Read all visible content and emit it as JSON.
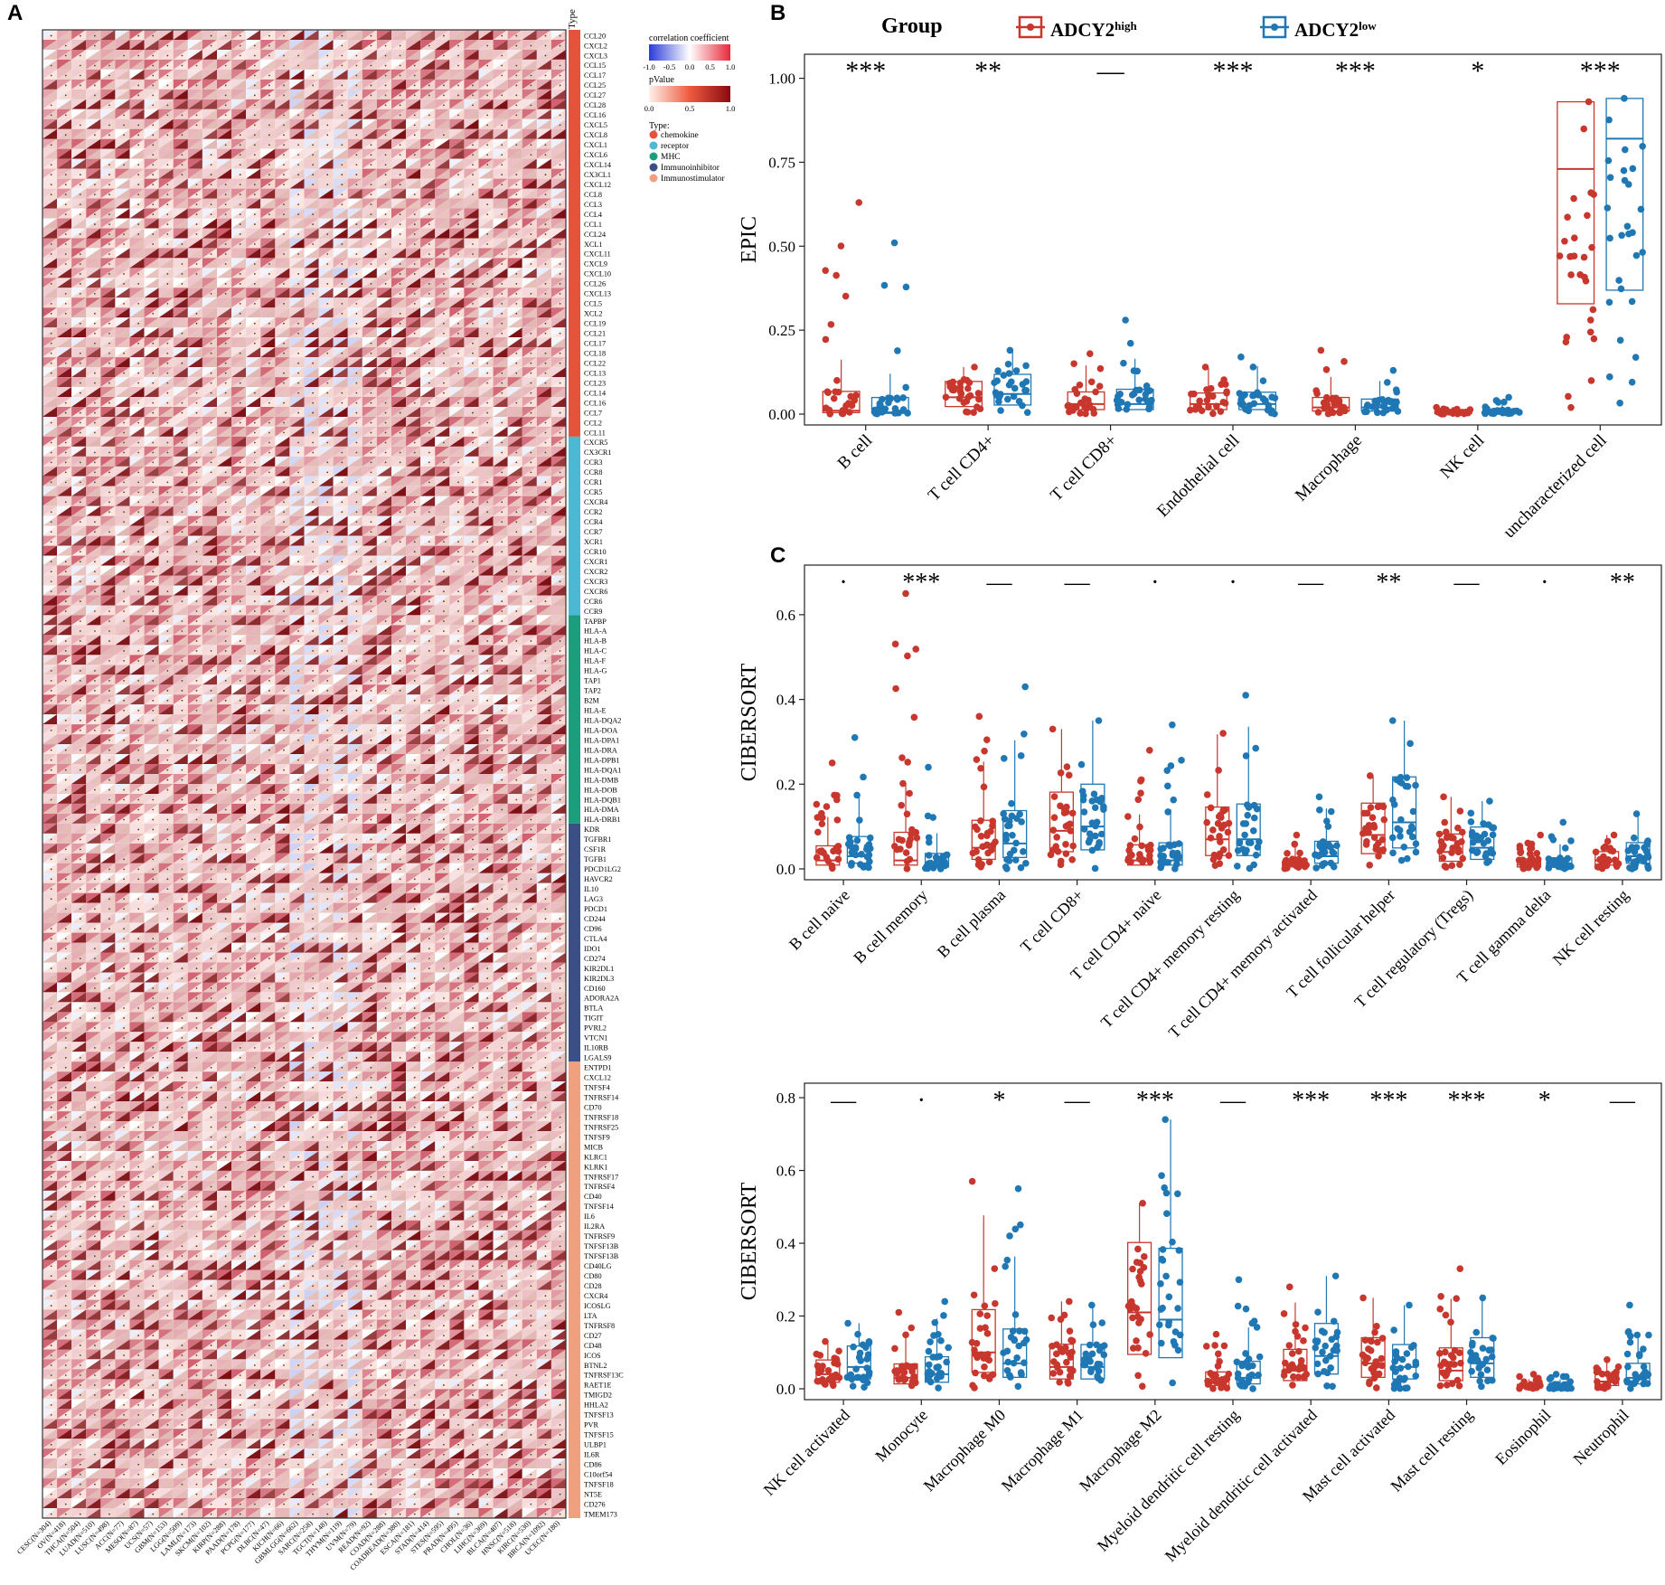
{
  "panels": {
    "a": "A",
    "b": "B",
    "c": "C"
  },
  "heatmap": {
    "type_title": "Type",
    "legend": {
      "corr_title": "correlation coefficient",
      "corr_ticks": [
        "-1.0",
        "-0.5",
        "0.0",
        "0.5",
        "1.0"
      ],
      "p_title": "pValue",
      "p_ticks": [
        "0.0",
        "0.5",
        "1.0"
      ],
      "type_label": "Type:",
      "types": [
        {
          "label": "chemokine",
          "color": "#e5533b"
        },
        {
          "label": "receptor",
          "color": "#4bb8d4"
        },
        {
          "label": "MHC",
          "color": "#1a9e7c"
        },
        {
          "label": "Immunoinhibitor",
          "color": "#3b4f86"
        },
        {
          "label": "Immunostimulator",
          "color": "#f0a07f"
        }
      ]
    },
    "colors": {
      "pos": "#b3001b",
      "neg": "#3d4fd6",
      "p_dark": "#7b0f12",
      "p_light": "#ffe8e0"
    },
    "cancers": [
      "CESC(N=304)",
      "OV(N=418)",
      "THCA(N=504)",
      "LUAD(N=510)",
      "LUSC(N=498)",
      "ACC(N=77)",
      "MESO(N=87)",
      "UCS(N=57)",
      "GBM(N=153)",
      "LGG(N=509)",
      "LAML(N=173)",
      "SKCM(N=102)",
      "KIRP(N=288)",
      "PAAD(N=178)",
      "PCPG(N=177)",
      "DLBC(N=47)",
      "KICH(N=66)",
      "GBMLGG(N=662)",
      "SARC(N=258)",
      "TGCT(N=148)",
      "THYM(N=119)",
      "UVM(N=79)",
      "READ(N=92)",
      "COAD(N=288)",
      "COADREAD(N=380)",
      "ESCA(N=181)",
      "STAD(N=414)",
      "STES(N=595)",
      "PRAD(N=495)",
      "CHOL(N=36)",
      "LIHC(N=369)",
      "BLCA(N=407)",
      "HNSC(N=518)",
      "KIRC(N=530)",
      "BRCA(N=1092)",
      "UCEC(N=180)"
    ],
    "genes": [
      {
        "type": "chemokine",
        "names": [
          "CCL20",
          "CXCL2",
          "CXCL3",
          "CCL15",
          "CCL17",
          "CCL25",
          "CCL27",
          "CCL28",
          "CCL16",
          "CXCL5",
          "CXCL8",
          "CXCL1",
          "CXCL6",
          "CXCL14",
          "CX3CL1",
          "CXCL12",
          "CCL8",
          "CCL3",
          "CCL4",
          "CCL1",
          "CCL24",
          "XCL1",
          "CXCL11",
          "CXCL9",
          "CXCL10",
          "CCL26",
          "CXCL13",
          "CCL5",
          "XCL2",
          "CCL19",
          "CCL21",
          "CCL17",
          "CCL18",
          "CCL22",
          "CCL13",
          "CCL23",
          "CCL14",
          "CCL16",
          "CCL7",
          "CCL2",
          "CCL11"
        ]
      },
      {
        "type": "receptor",
        "names": [
          "CXCR5",
          "CX3CR1",
          "CCR3",
          "CCR8",
          "CCR1",
          "CCR5",
          "CXCR4",
          "CCR2",
          "CCR4",
          "CCR7",
          "XCR1",
          "CCR10",
          "CXCR1",
          "CXCR2",
          "CXCR3",
          "CXCR6",
          "CCR6",
          "CCR9"
        ]
      },
      {
        "type": "MHC",
        "names": [
          "TAPBP",
          "HLA-A",
          "HLA-B",
          "HLA-C",
          "HLA-F",
          "HLA-G",
          "TAP1",
          "TAP2",
          "B2M",
          "HLA-E",
          "HLA-DQA2",
          "HLA-DOA",
          "HLA-DPA1",
          "HLA-DRA",
          "HLA-DPB1",
          "HLA-DQA1",
          "HLA-DMB",
          "HLA-DOB",
          "HLA-DQB1",
          "HLA-DMA",
          "HLA-DRB1"
        ]
      },
      {
        "type": "Immunoinhibitor",
        "names": [
          "KDR",
          "TGFBR1",
          "CSF1R",
          "TGFB1",
          "PDCD1LG2",
          "HAVCR2",
          "IL10",
          "LAG3",
          "PDCD1",
          "CD244",
          "CD96",
          "CTLA4",
          "IDO1",
          "CD274",
          "KIR2DL1",
          "KIR2DL3",
          "CD160",
          "ADORA2A",
          "BTLA",
          "TIGIT",
          "PVRL2",
          "VTCN1",
          "IL10RB",
          "LGALS9"
        ]
      },
      {
        "type": "Immunostimulator",
        "names": [
          "ENTPD1",
          "CXCL12",
          "TNFSF4",
          "TNFRSF14",
          "CD70",
          "TNFRSF18",
          "TNFRSF25",
          "TNFSF9",
          "MICB",
          "KLRC1",
          "KLRK1",
          "TNFRSF17",
          "TNFRSF4",
          "CD40",
          "TNFSF14",
          "IL6",
          "IL2RA",
          "TNFRSF9",
          "TNFSF13B",
          "TNFSF13B",
          "CD40LG",
          "CD80",
          "CD28",
          "CXCR4",
          "ICOSLG",
          "LTA",
          "TNFRSF8",
          "CD27",
          "CD48",
          "ICOS",
          "BTNL2",
          "TNFRSF13C",
          "RAET1E",
          "TMIGD2",
          "HHLA2",
          "TNFSF13",
          "PVR",
          "TNFSF15",
          "ULBP1",
          "IL6R",
          "CD86",
          "C10orf54",
          "TNFSF18",
          "NT5E",
          "CD276",
          "TMEM173"
        ]
      }
    ]
  },
  "legend_group": {
    "title": "Group",
    "high_base": "ADCY2",
    "high_sup": "high",
    "low_base": "ADCY2",
    "low_sup": "low",
    "high_color": "#c8372d",
    "low_color": "#1f77b4"
  },
  "chart_data": [
    {
      "type": "box",
      "id": "epic",
      "panel": "B",
      "ylabel": "EPIC",
      "ylim": [
        0,
        1.05
      ],
      "yticks": [
        "0.00",
        "0.25",
        "0.50",
        "0.75",
        "1.00"
      ],
      "categories": [
        "B cell",
        "T cell CD4+",
        "T cell CD8+",
        "Endothelial cell",
        "Macrophage",
        "NK cell",
        "uncharacterized cell"
      ],
      "significance": [
        "***",
        "**",
        "—",
        "***",
        "***",
        "*",
        "***"
      ],
      "series": [
        {
          "name": "ADCY2 high",
          "medians": [
            0.01,
            0.05,
            0.03,
            0.03,
            0.02,
            0.003,
            0.73
          ],
          "maxima": [
            0.63,
            0.14,
            0.18,
            0.14,
            0.19,
            0.02,
            0.93
          ]
        },
        {
          "name": "ADCY2 low",
          "medians": [
            0.005,
            0.06,
            0.03,
            0.03,
            0.02,
            0.005,
            0.82
          ],
          "maxima": [
            0.51,
            0.19,
            0.28,
            0.17,
            0.13,
            0.05,
            0.94
          ]
        }
      ]
    },
    {
      "type": "box",
      "id": "cib1",
      "panel": "C",
      "ylabel": "CIBERSORT",
      "ylim": [
        0,
        0.7
      ],
      "yticks": [
        "0.0",
        "0.2",
        "0.4",
        "0.6"
      ],
      "categories": [
        "B cell naive",
        "B cell memory",
        "B cell plasma",
        "T cell CD8+",
        "T cell CD4+ naive",
        "T cell CD4+ memory resting",
        "T cell CD4+ memory activated",
        "T cell follicular helper",
        "T cell regulatory (Tregs)",
        "T cell gamma delta",
        "NK cell resting"
      ],
      "significance": [
        "·",
        "***",
        "—",
        "—",
        "·",
        "·",
        "—",
        "**",
        "—",
        "·",
        "**"
      ],
      "series": [
        {
          "name": "ADCY2 high",
          "medians": [
            0.02,
            0.02,
            0.05,
            0.09,
            0.02,
            0.07,
            0.01,
            0.08,
            0.04,
            0.01,
            0.02
          ],
          "maxima": [
            0.25,
            0.65,
            0.36,
            0.33,
            0.28,
            0.32,
            0.08,
            0.22,
            0.17,
            0.08,
            0.08
          ]
        },
        {
          "name": "ADCY2 low",
          "medians": [
            0.03,
            0.01,
            0.06,
            0.1,
            0.02,
            0.07,
            0.03,
            0.11,
            0.05,
            0.01,
            0.03
          ],
          "maxima": [
            0.31,
            0.24,
            0.43,
            0.35,
            0.34,
            0.41,
            0.17,
            0.35,
            0.16,
            0.11,
            0.13
          ]
        }
      ]
    },
    {
      "type": "box",
      "id": "cib2",
      "panel": "C",
      "ylabel": "CIBERSORT",
      "ylim": [
        0,
        0.82
      ],
      "yticks": [
        "0.0",
        "0.2",
        "0.4",
        "0.6",
        "0.8"
      ],
      "categories": [
        "NK cell activated",
        "Monocyte",
        "Macrophage M0",
        "Macrophage M1",
        "Macrophage M2",
        "Myeloid dendritic cell resting",
        "Myeloid dendritic cell activated",
        "Mast cell activated",
        "Mast cell resting",
        "Eosinophil",
        "Neutrophil"
      ],
      "significance": [
        "—",
        "·",
        "*",
        "—",
        "***",
        "—",
        "***",
        "***",
        "***",
        "*",
        "—"
      ],
      "series": [
        {
          "name": "ADCY2 high",
          "medians": [
            0.04,
            0.03,
            0.1,
            0.06,
            0.21,
            0.02,
            0.05,
            0.07,
            0.05,
            0.005,
            0.02
          ],
          "maxima": [
            0.13,
            0.21,
            0.57,
            0.24,
            0.51,
            0.15,
            0.28,
            0.25,
            0.33,
            0.04,
            0.08
          ]
        },
        {
          "name": "ADCY2 low",
          "medians": [
            0.06,
            0.04,
            0.07,
            0.06,
            0.19,
            0.03,
            0.09,
            0.06,
            0.07,
            0.005,
            0.03
          ],
          "maxima": [
            0.18,
            0.24,
            0.55,
            0.23,
            0.74,
            0.3,
            0.31,
            0.23,
            0.25,
            0.04,
            0.23
          ]
        }
      ]
    }
  ]
}
